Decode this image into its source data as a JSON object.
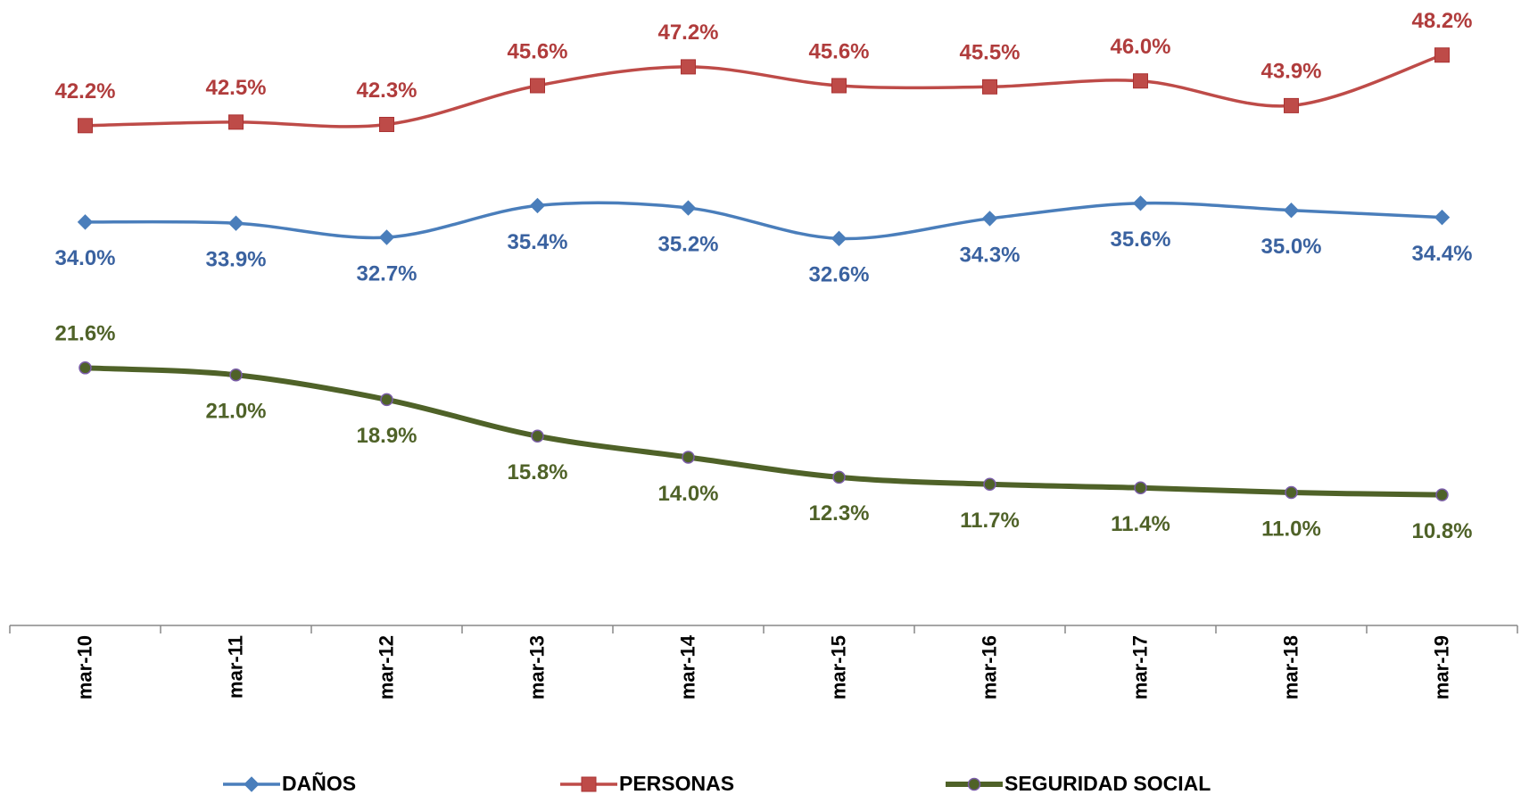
{
  "chart_data": {
    "type": "line",
    "categories": [
      "mar-10",
      "mar-11",
      "mar-12",
      "mar-13",
      "mar-14",
      "mar-15",
      "mar-16",
      "mar-17",
      "mar-18",
      "mar-19"
    ],
    "series": [
      {
        "name": "DAÑOS",
        "color": "#4a7ebb",
        "marker": "diamond",
        "values": [
          34.0,
          33.9,
          32.7,
          35.4,
          35.2,
          32.6,
          34.3,
          35.6,
          35.0,
          34.4
        ],
        "value_labels": [
          "34.0%",
          "33.9%",
          "32.7%",
          "35.4%",
          "35.2%",
          "32.6%",
          "34.3%",
          "35.6%",
          "35.0%",
          "34.4%"
        ]
      },
      {
        "name": "PERSONAS",
        "color": "#be4b48",
        "marker": "square",
        "values": [
          42.2,
          42.5,
          42.3,
          45.6,
          47.2,
          45.6,
          45.5,
          46.0,
          43.9,
          48.2
        ],
        "value_labels": [
          "42.2%",
          "42.5%",
          "42.3%",
          "45.6%",
          "47.2%",
          "45.6%",
          "45.5%",
          "46.0%",
          "43.9%",
          "48.2%"
        ]
      },
      {
        "name": "SEGURIDAD SOCIAL",
        "color": "#4f6228",
        "marker": "circle",
        "values": [
          21.6,
          21.0,
          18.9,
          15.8,
          14.0,
          12.3,
          11.7,
          11.4,
          11.0,
          10.8
        ],
        "value_labels": [
          "21.6%",
          "21.0%",
          "18.9%",
          "15.8%",
          "14.0%",
          "12.3%",
          "11.7%",
          "11.4%",
          "11.0%",
          "10.8%"
        ]
      }
    ],
    "legend": "bottom"
  }
}
